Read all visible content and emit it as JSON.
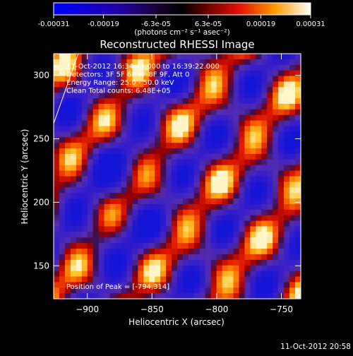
{
  "chart_data": {
    "type": "heatmap",
    "title": "Reconstructed RHESSI Image",
    "xlabel": "Heliocentric X (arcsec)",
    "ylabel": "Heliocentric Y (arcsec)",
    "xlim": [
      -926,
      -735
    ],
    "ylim": [
      124,
      317
    ],
    "x_ticks": [
      -900,
      -850,
      -800,
      -750
    ],
    "y_ticks": [
      150,
      200,
      250,
      300
    ],
    "colorbar": {
      "ticks": [
        -0.00031,
        -0.00019,
        -6.3e-05,
        6.3e-05,
        0.00019,
        0.00031
      ],
      "tick_labels": [
        "-0.00031",
        "-0.00019",
        "-6.3e-05",
        "6.3e-05",
        "0.00019",
        "0.00031"
      ],
      "range": [
        -0.00031,
        0.00031
      ],
      "unit_label": "(photons cm⁻² s⁻¹ asec⁻²)"
    },
    "info_lines": [
      "11-Oct-2012 16:34:44.000 to 16:39:22.000",
      "Detectors: 3F 5F 6F 7F 8F 9F, Att 0",
      "Energy Range: 25.0 - 50.0 keV",
      "Clean     Total counts: 6.48E+05"
    ],
    "peak_label": "Position of Peak = [-794,314]",
    "peak": [
      -794,
      314
    ],
    "limb_line": [
      [
        -926,
        262
      ],
      [
        -907,
        317
      ]
    ]
  },
  "footer_timestamp": "11-Oct-2012 20:58"
}
